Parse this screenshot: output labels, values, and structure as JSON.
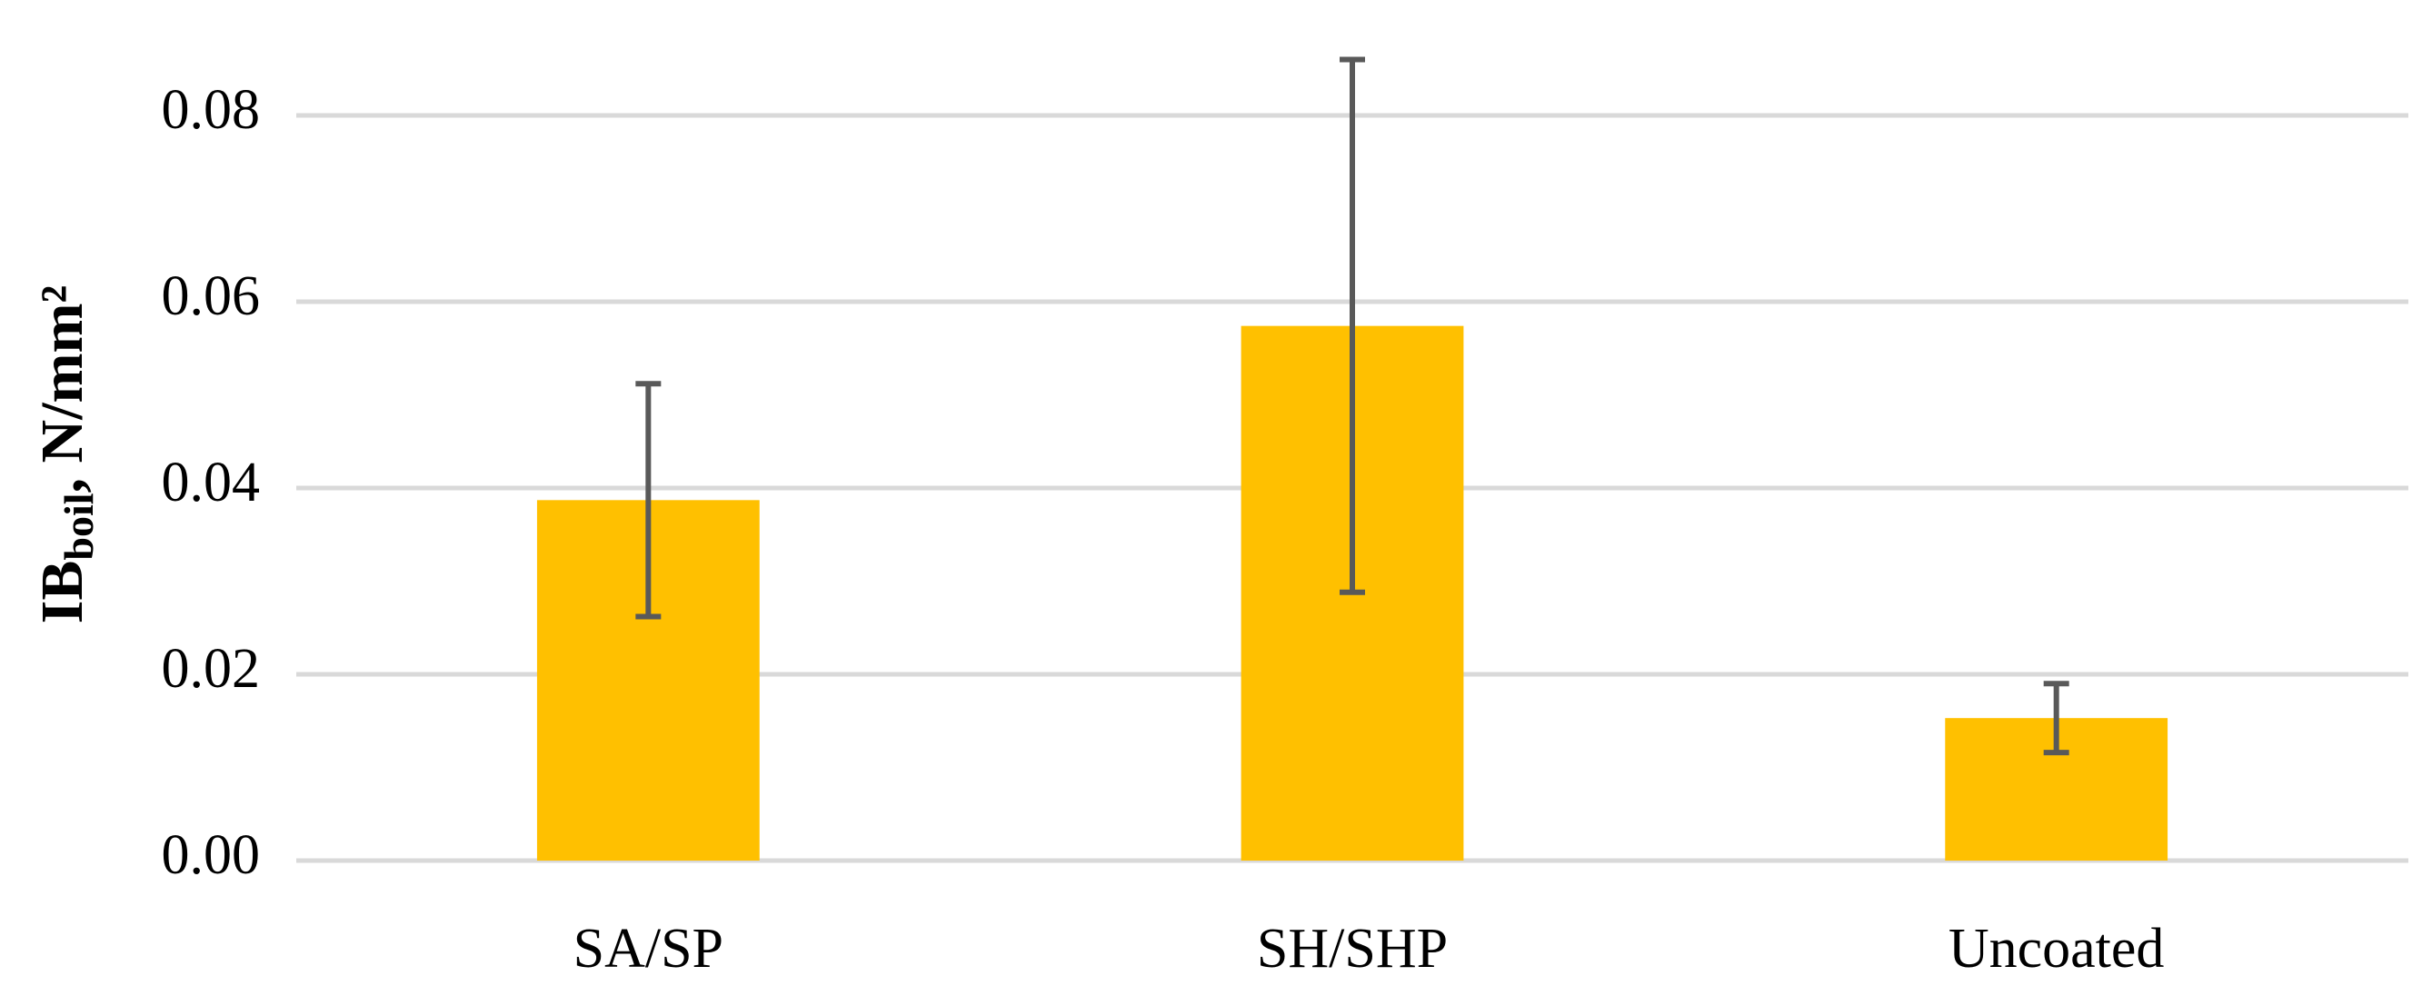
{
  "chart_data": {
    "type": "bar",
    "y_label": {
      "main": "IB",
      "subscript": "boil",
      "suffix": ", N/mm²"
    },
    "categories": [
      "SA/SP",
      "SH/SHP",
      "Uncoated"
    ],
    "values": [
      0.0387,
      0.0574,
      0.0153
    ],
    "errors": [
      0.0125,
      0.0286,
      0.0037
    ],
    "color": "#ffc000",
    "error_color": "#595959",
    "ylim": [
      0,
      0.09
    ],
    "yticks": [
      {
        "value": 0,
        "label": "0.00"
      },
      0.02,
      0.04,
      0.06,
      0.08
    ],
    "grid": true
  }
}
